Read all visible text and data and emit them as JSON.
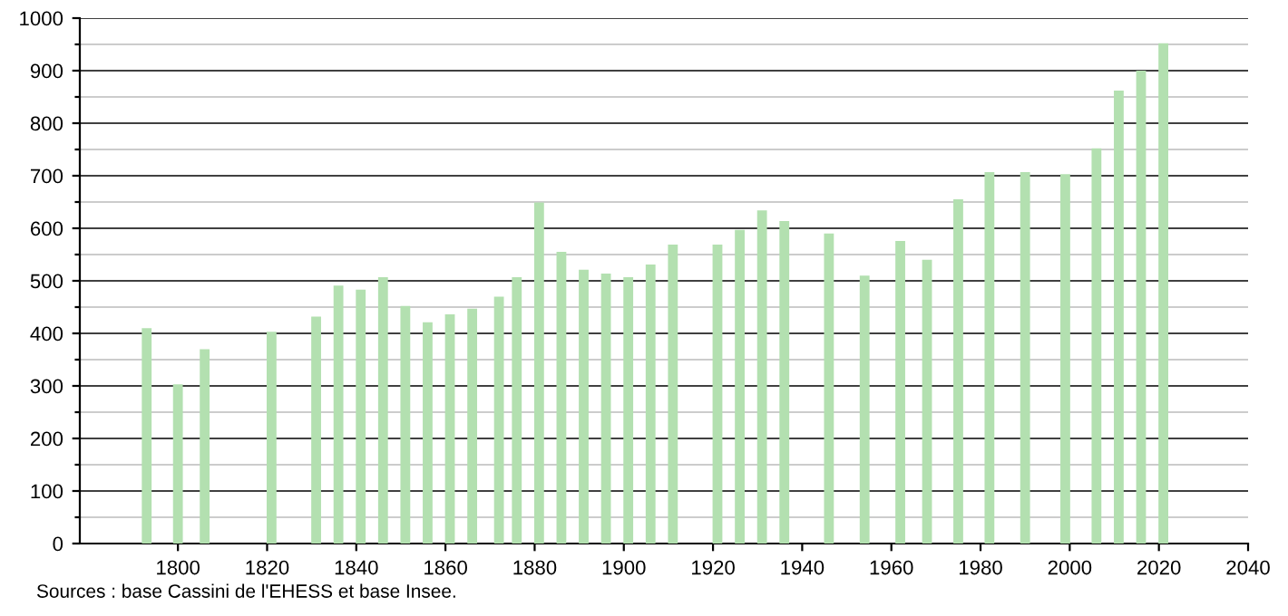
{
  "chart_data": {
    "type": "bar",
    "x": [
      1793,
      1800,
      1806,
      1821,
      1831,
      1836,
      1841,
      1846,
      1851,
      1856,
      1861,
      1866,
      1872,
      1876,
      1881,
      1886,
      1891,
      1896,
      1901,
      1906,
      1911,
      1921,
      1926,
      1931,
      1936,
      1946,
      1954,
      1962,
      1968,
      1975,
      1982,
      1990,
      1999,
      2006,
      2011,
      2016,
      2021
    ],
    "values": [
      410,
      303,
      370,
      403,
      432,
      491,
      483,
      507,
      452,
      421,
      436,
      447,
      470,
      507,
      649,
      555,
      521,
      514,
      507,
      531,
      569,
      569,
      597,
      634,
      614,
      590,
      510,
      576,
      540,
      655,
      707,
      707,
      703,
      752,
      862,
      900,
      952
    ],
    "color": "#b3e0b0",
    "xlim": [
      1778,
      2040
    ],
    "xticks": [
      1800,
      1820,
      1840,
      1860,
      1880,
      1900,
      1920,
      1940,
      1960,
      1980,
      2000,
      2020,
      2040
    ],
    "ylim": [
      0,
      1000
    ],
    "yticks": [
      0,
      {
        "value": 50,
        "label": null
      },
      100,
      {
        "value": 150,
        "label": null
      },
      200,
      {
        "value": 250,
        "label": null
      },
      300,
      {
        "value": 350,
        "label": null
      },
      400,
      {
        "value": 450,
        "label": null
      },
      500,
      {
        "value": 550,
        "label": null
      },
      600,
      {
        "value": 650,
        "label": null
      },
      700,
      {
        "value": 750,
        "label": null
      },
      800,
      {
        "value": 850,
        "label": null
      },
      900,
      {
        "value": 950,
        "label": null
      },
      1000
    ],
    "grid": "y",
    "annotations": [
      "Sources : base Cassini de l'EHESS et base Insee."
    ]
  }
}
